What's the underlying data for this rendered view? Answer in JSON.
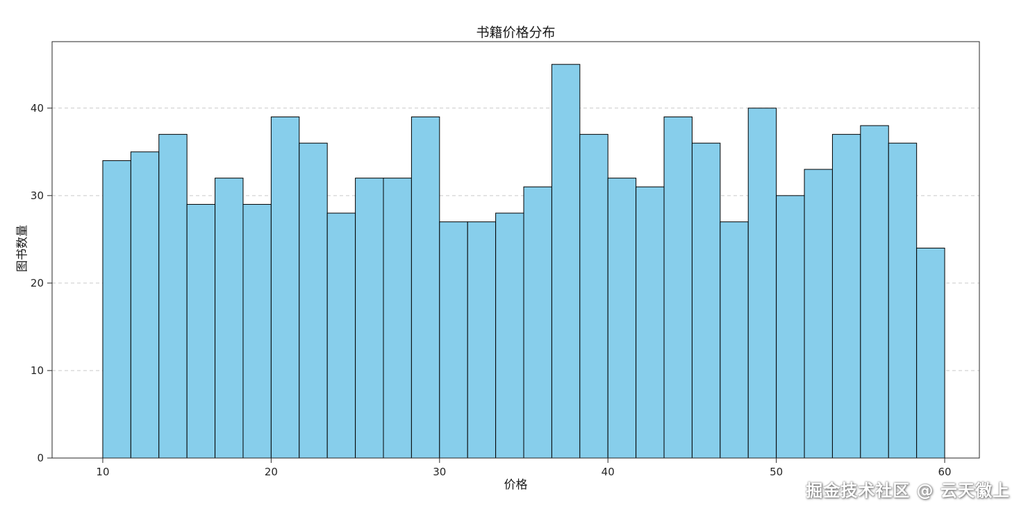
{
  "chart_data": {
    "type": "bar",
    "subtype": "histogram",
    "title": "书籍价格分布",
    "xlabel": "价格",
    "ylabel": "图书数量",
    "bin_start": 10,
    "bin_end": 60,
    "bin_count": 30,
    "values": [
      34,
      35,
      37,
      29,
      32,
      29,
      39,
      36,
      28,
      32,
      32,
      39,
      27,
      27,
      28,
      31,
      45,
      37,
      32,
      31,
      39,
      36,
      27,
      40,
      30,
      33,
      37,
      38,
      36,
      24
    ],
    "xticks": [
      10,
      20,
      30,
      40,
      50,
      60
    ],
    "yticks": [
      0,
      10,
      20,
      30,
      40
    ],
    "xlim": [
      6.99,
      62.06
    ],
    "ylim": [
      0,
      47.6
    ],
    "bar_color": "#87CEEB",
    "bar_edge_color": "#000000",
    "grid": true,
    "grid_style": "dashed",
    "grid_color": "#c9c9c9",
    "axis_color": "#262626",
    "legend": "none"
  },
  "watermark": {
    "text": "掘金技术社区 @ 云天徽上"
  }
}
